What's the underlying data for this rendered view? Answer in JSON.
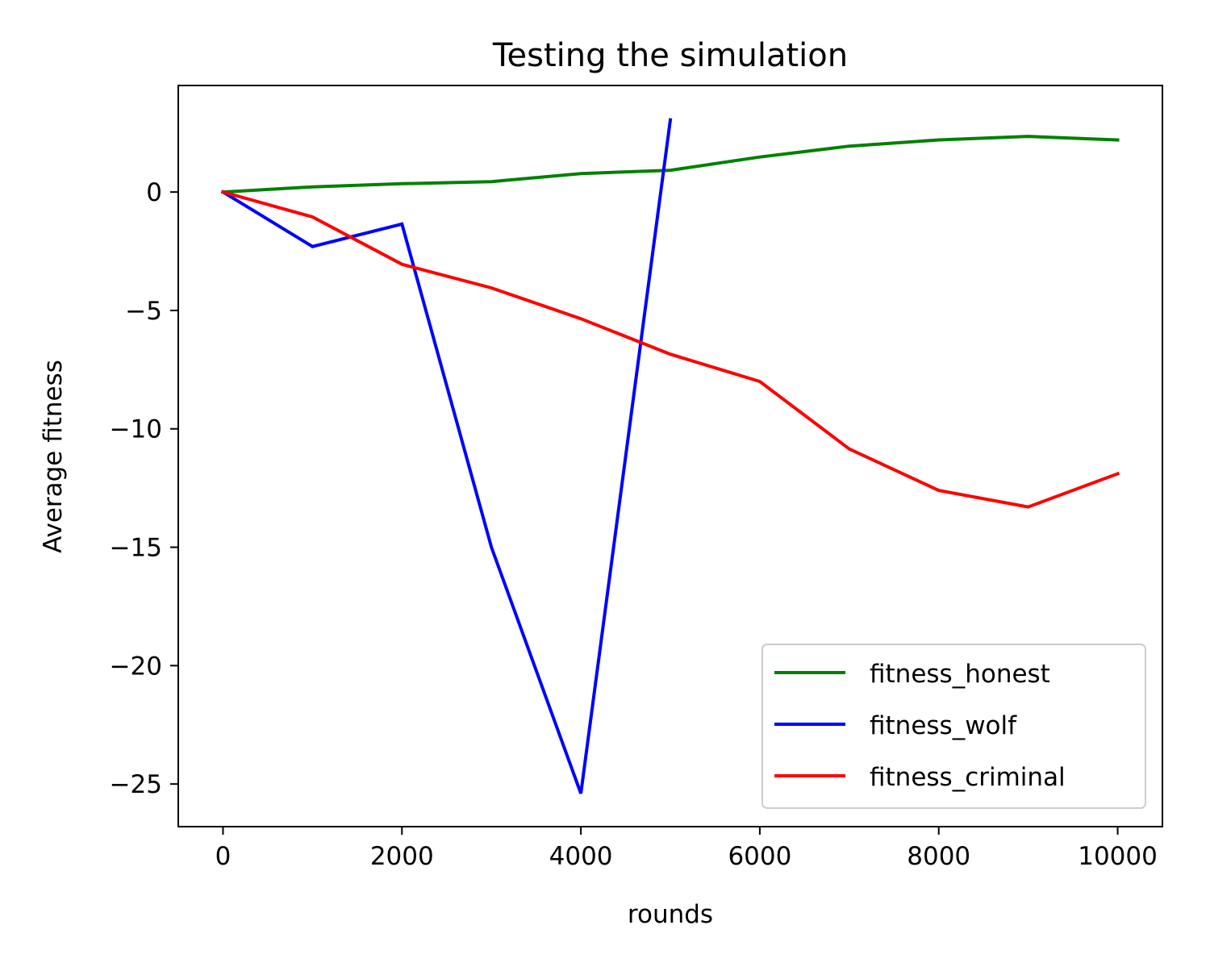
{
  "chart_data": {
    "type": "line",
    "title": "Testing the simulation",
    "xlabel": "rounds",
    "ylabel": "Average fitness",
    "xlim": [
      -500,
      10500
    ],
    "ylim": [
      -26.8,
      4.5
    ],
    "grid": false,
    "legend_position": "lower right",
    "x_ticks": [
      {
        "value": 0,
        "label": "0"
      },
      {
        "value": 2000,
        "label": "2000"
      },
      {
        "value": 4000,
        "label": "4000"
      },
      {
        "value": 6000,
        "label": "6000"
      },
      {
        "value": 8000,
        "label": "8000"
      },
      {
        "value": 10000,
        "label": "10000"
      }
    ],
    "y_ticks": [
      {
        "value": 0,
        "label": "0"
      },
      {
        "value": -5,
        "label": "−5"
      },
      {
        "value": -10,
        "label": "−10"
      },
      {
        "value": -15,
        "label": "−15"
      },
      {
        "value": -20,
        "label": "−20"
      },
      {
        "value": -25,
        "label": "−25"
      }
    ],
    "series": [
      {
        "name": "fitness_honest",
        "color": "#008000",
        "x": [
          0,
          1000,
          2000,
          3000,
          4000,
          5000,
          6000,
          7000,
          8000,
          9000,
          10000
        ],
        "y": [
          0,
          0.22,
          0.35,
          0.44,
          0.78,
          0.92,
          1.48,
          1.94,
          2.2,
          2.35,
          2.2
        ]
      },
      {
        "name": "fitness_wolf",
        "color": "#0000ff",
        "x": [
          0,
          1000,
          2000,
          3000,
          4000,
          5000
        ],
        "y": [
          0,
          -2.3,
          -1.35,
          -15.0,
          -25.4,
          3.05
        ]
      },
      {
        "name": "fitness_criminal",
        "color": "#ff0000",
        "x": [
          0,
          1000,
          2000,
          3000,
          4000,
          5000,
          6000,
          7000,
          8000,
          9000,
          10000
        ],
        "y": [
          0,
          -1.05,
          -3.05,
          -4.05,
          -5.35,
          -6.85,
          -8.0,
          -10.85,
          -12.6,
          -13.3,
          -11.9
        ]
      }
    ]
  }
}
